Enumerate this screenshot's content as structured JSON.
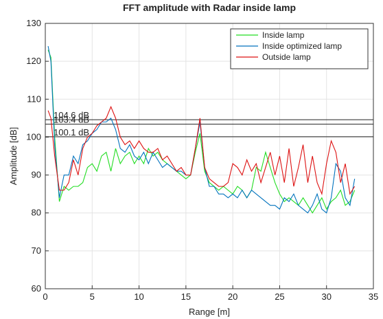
{
  "chart_data": {
    "type": "line",
    "title": "FFT amplitude with Radar inside lamp",
    "xlabel": "Range [m]",
    "ylabel": "Amplitude [dB]",
    "xlim": [
      0,
      35
    ],
    "ylim": [
      60,
      130
    ],
    "xticks": [
      0,
      5,
      10,
      15,
      20,
      25,
      30,
      35
    ],
    "yticks": [
      60,
      70,
      80,
      90,
      100,
      110,
      120,
      130
    ],
    "grid": true,
    "legend": "upper right",
    "annotations": [
      {
        "value": 104.6,
        "label": "104.6 dB"
      },
      {
        "value": 103.4,
        "label": "103.4 dB"
      },
      {
        "value": 100.1,
        "label": "100.1 dB"
      }
    ],
    "x": [
      0.3,
      0.6,
      1.0,
      1.5,
      2.0,
      2.5,
      3.0,
      3.5,
      4.0,
      4.5,
      5.0,
      5.5,
      6.0,
      6.5,
      7.0,
      7.5,
      8.0,
      8.5,
      9.0,
      9.5,
      10.0,
      10.5,
      11.0,
      11.5,
      12.0,
      12.5,
      13.0,
      13.5,
      14.0,
      14.5,
      15.0,
      15.5,
      16.0,
      16.5,
      17.0,
      17.5,
      18.0,
      18.5,
      19.0,
      19.5,
      20.0,
      20.5,
      21.0,
      21.5,
      22.0,
      22.5,
      23.0,
      23.5,
      24.0,
      24.5,
      25.0,
      25.5,
      26.0,
      26.5,
      27.0,
      27.5,
      28.0,
      28.5,
      29.0,
      29.5,
      30.0,
      30.5,
      31.0,
      31.5,
      32.0,
      32.5,
      33.0
    ],
    "series": [
      {
        "name": "Inside lamp",
        "color": "#22dd22",
        "values": [
          123,
          121,
          100,
          83,
          87,
          86,
          87,
          87,
          88,
          92,
          93,
          91,
          95,
          96,
          91,
          97,
          93,
          95,
          96,
          93,
          95,
          93,
          97,
          95,
          96,
          94,
          93,
          92,
          91,
          90,
          89,
          90,
          96,
          101,
          91,
          88,
          87,
          86,
          87,
          86,
          85,
          87,
          86,
          84,
          86,
          92,
          91,
          96,
          92,
          88,
          85,
          83,
          84,
          83,
          82,
          84,
          82,
          80,
          82,
          84,
          81,
          83,
          84,
          86,
          82,
          83,
          86
        ]
      },
      {
        "name": "Inside optimized lamp",
        "color": "#0072bd",
        "values": [
          124,
          120,
          98,
          84,
          90,
          90,
          95,
          93,
          98,
          99,
          101,
          102,
          104,
          104,
          105,
          102,
          97,
          96,
          98,
          95,
          94,
          96,
          93,
          96,
          94,
          92,
          93,
          92,
          91,
          91,
          90,
          90,
          97,
          104,
          92,
          87,
          87,
          85,
          85,
          84,
          85,
          84,
          86,
          84,
          86,
          85,
          84,
          83,
          82,
          82,
          81,
          84,
          83,
          85,
          82,
          81,
          80,
          82,
          85,
          81,
          80,
          84,
          93,
          91,
          84,
          82,
          89
        ]
      },
      {
        "name": "Outside lamp",
        "color": "#dd1111",
        "values": [
          107,
          105,
          95,
          86,
          86,
          88,
          94,
          90,
          97,
          100,
          101,
          103,
          104,
          105,
          108,
          105,
          100,
          98,
          99,
          97,
          99,
          97,
          96,
          96,
          97,
          94,
          95,
          93,
          91,
          92,
          90,
          90,
          97,
          105,
          92,
          89,
          88,
          87,
          87,
          88,
          93,
          92,
          90,
          94,
          91,
          93,
          88,
          92,
          96,
          90,
          95,
          88,
          97,
          87,
          92,
          98,
          88,
          95,
          88,
          85,
          93,
          99,
          96,
          88,
          93,
          85,
          87
        ]
      }
    ]
  }
}
